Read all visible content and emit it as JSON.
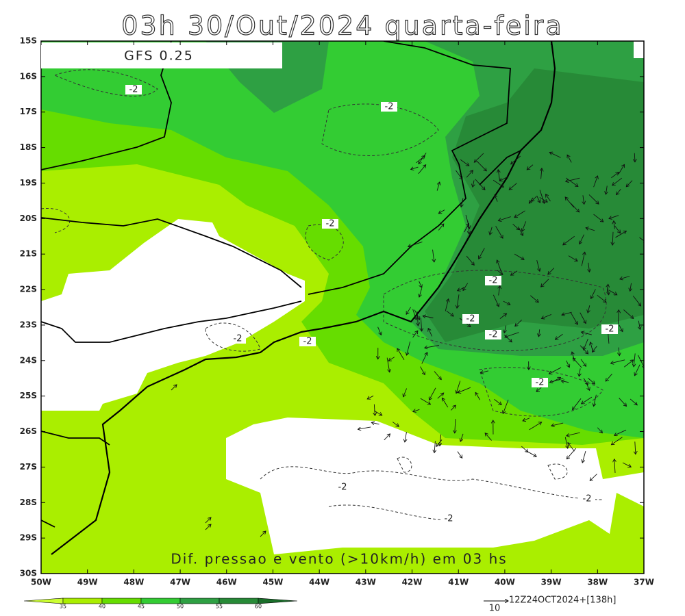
{
  "title": "03h 30/Out/2024 quarta-feira",
  "model": "GFS 0.25",
  "caption": "Dif. pressao e vento (>10km/h) em 03 hs",
  "lat_labels": [
    "15S",
    "16S",
    "17S",
    "18S",
    "19S",
    "20S",
    "21S",
    "22S",
    "23S",
    "24S",
    "25S",
    "26S",
    "27S",
    "28S",
    "29S",
    "30S"
  ],
  "lon_labels": [
    "50W",
    "49W",
    "48W",
    "47W",
    "46W",
    "45W",
    "44W",
    "43W",
    "42W",
    "41W",
    "40W",
    "39W",
    "38W",
    "37W"
  ],
  "colorbar_labels": [
    "35",
    "40",
    "45",
    "50",
    "55",
    "60"
  ],
  "contour_labels": [
    "-2",
    "-2",
    "-2",
    "-2",
    "-2",
    "-2",
    "-2",
    "-2",
    "-2",
    "-2",
    "-2",
    "-2",
    "-2"
  ],
  "vector_scale": "10",
  "run_info": "12Z24OCT2024+[138h]"
}
